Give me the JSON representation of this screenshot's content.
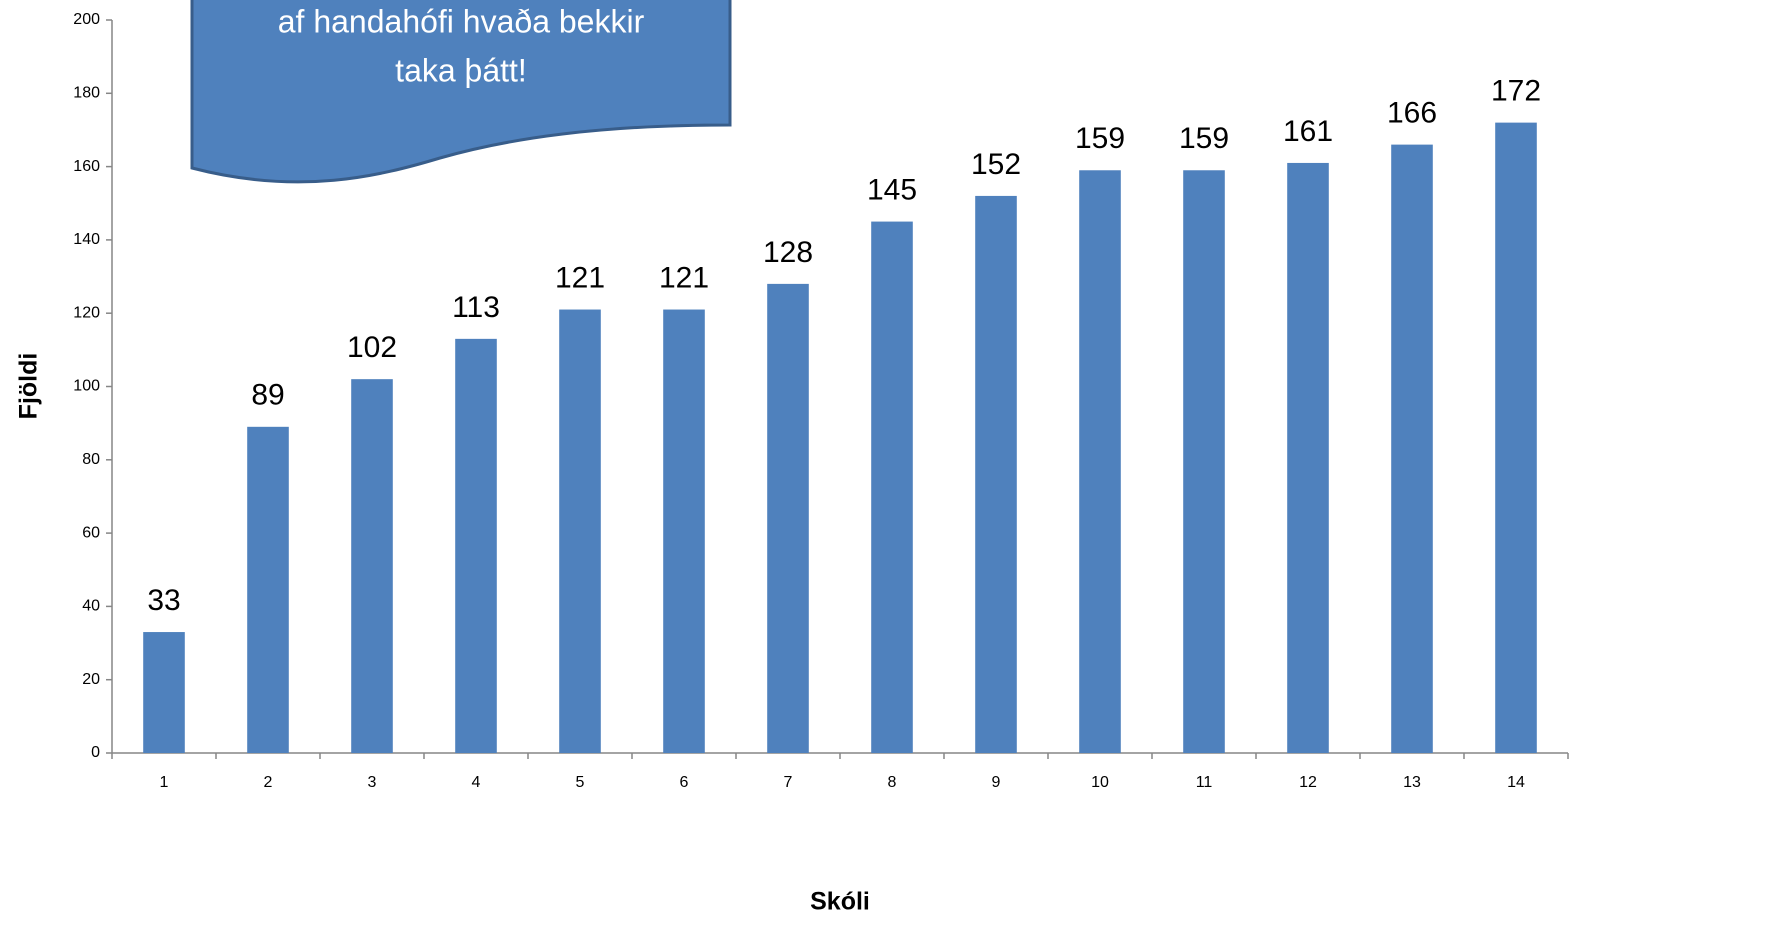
{
  "chart_data": {
    "type": "bar",
    "callout": [
      "af handahófi hvaða bekkir",
      "taka þátt!"
    ],
    "xlabel": "Skóli",
    "ylabel": "Fjöldi",
    "categories": [
      "1",
      "2",
      "3",
      "4",
      "5",
      "6",
      "7",
      "8",
      "9",
      "10",
      "11",
      "12",
      "13",
      "14"
    ],
    "values": [
      33,
      89,
      102,
      113,
      121,
      121,
      128,
      145,
      152,
      159,
      159,
      161,
      166,
      172
    ],
    "color": "#4f81bd",
    "ylim": [
      0,
      200
    ],
    "yticks": [
      0,
      20,
      40,
      60,
      80,
      100,
      120,
      140,
      160,
      180,
      200
    ],
    "grid": false
  }
}
